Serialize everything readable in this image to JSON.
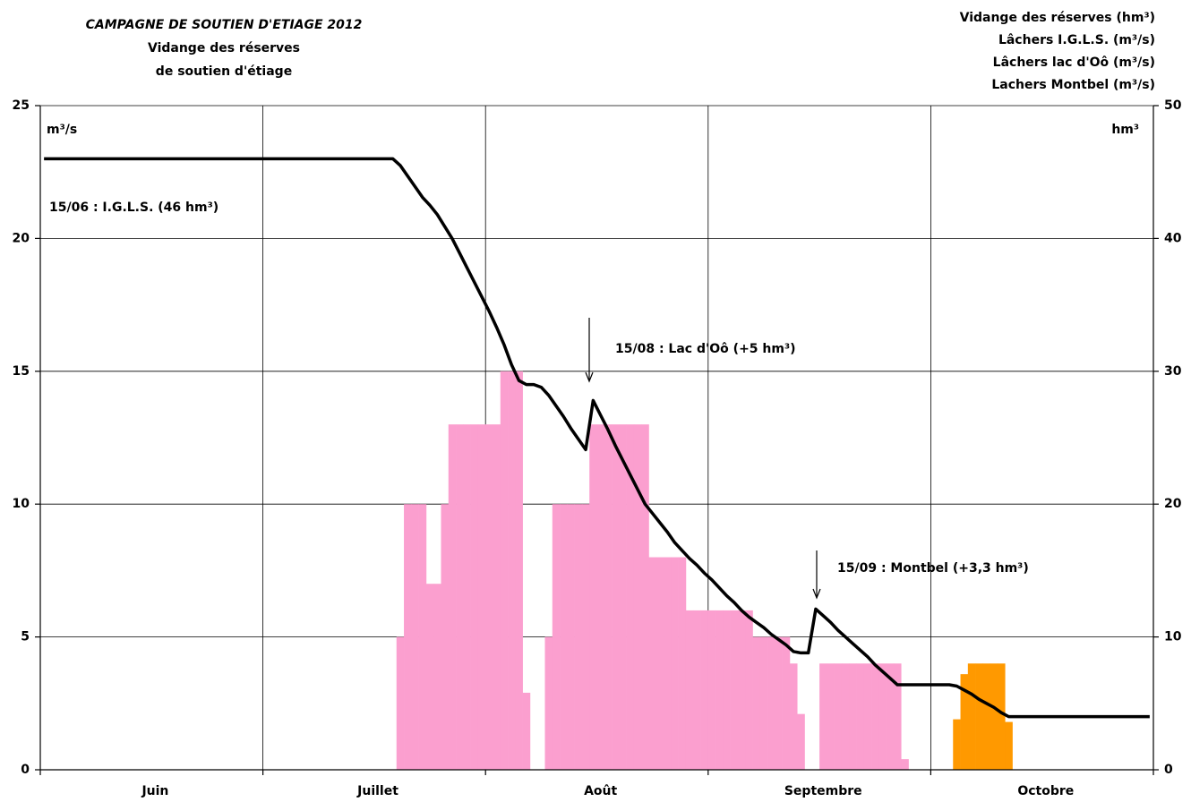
{
  "chart_data": {
    "type": "bar",
    "title": "CAMPAGNE DE SOUTIEN D'ETIAGE 2012",
    "subtitle": [
      "Vidange des réserves",
      "de soutien d'étiage"
    ],
    "ylabel": "m³/s",
    "y2label": "hm³",
    "ylim": [
      0,
      25
    ],
    "yticks": [
      0,
      5,
      10,
      15,
      20,
      25
    ],
    "y2lim": [
      0,
      50
    ],
    "y2ticks": [
      0,
      10,
      20,
      30,
      40,
      50
    ],
    "grid": true,
    "legend": "upper right",
    "stacked": true,
    "categories": [
      null,
      null,
      null,
      null,
      null,
      null,
      null,
      null,
      null,
      null,
      null,
      null,
      null,
      null,
      null,
      "Juin",
      null,
      null,
      null,
      null,
      null,
      null,
      null,
      null,
      null,
      null,
      null,
      null,
      null,
      null,
      null,
      null,
      null,
      null,
      null,
      null,
      null,
      null,
      null,
      null,
      null,
      null,
      null,
      null,
      null,
      "Juillet",
      null,
      null,
      null,
      null,
      null,
      null,
      null,
      null,
      null,
      null,
      null,
      null,
      null,
      null,
      null,
      null,
      null,
      null,
      null,
      null,
      null,
      null,
      null,
      null,
      null,
      null,
      null,
      null,
      null,
      "Août",
      null,
      null,
      null,
      null,
      null,
      null,
      null,
      null,
      null,
      null,
      null,
      null,
      null,
      null,
      null,
      null,
      null,
      null,
      null,
      null,
      null,
      null,
      null,
      null,
      null,
      null,
      null,
      null,
      null,
      "Septembre",
      null,
      null,
      null,
      null,
      null,
      null,
      null,
      null,
      null,
      null,
      null,
      null,
      null,
      null,
      null,
      null,
      null,
      null,
      null,
      null,
      null,
      null,
      null,
      null,
      null,
      null,
      null,
      null,
      null,
      "Octobre",
      null,
      null,
      null,
      null,
      null,
      null,
      null,
      null,
      null,
      null,
      null,
      null,
      null,
      null
    ],
    "series": [
      {
        "name": "Vidange des réserves (hm³)",
        "type": "line",
        "axis": "y2",
        "color": "#000000",
        "values": [
          46,
          46,
          46,
          46,
          46,
          46,
          46,
          46,
          46,
          46,
          46,
          46,
          46,
          46,
          46,
          46,
          46,
          46,
          46,
          46,
          46,
          46,
          46,
          46,
          46,
          46,
          46,
          46,
          46,
          46,
          46,
          46,
          46,
          46,
          46,
          46,
          46,
          46,
          46,
          46,
          46,
          46,
          46,
          46,
          46,
          46,
          46,
          46,
          45.5,
          44.7,
          43.9,
          43.1,
          42.5,
          41.8,
          40.9,
          40,
          38.9,
          37.8,
          36.7,
          35.6,
          34.5,
          33.3,
          32,
          30.5,
          29.3,
          29,
          29,
          28.8,
          28.2,
          27.4,
          26.6,
          25.7,
          24.9,
          24.1,
          27.8,
          26.7,
          25.6,
          24.4,
          23.3,
          22.2,
          21.1,
          20,
          19.3,
          18.6,
          17.9,
          17.1,
          16.5,
          15.9,
          15.4,
          14.8,
          14.3,
          13.7,
          13.1,
          12.6,
          12,
          11.5,
          11.1,
          10.7,
          10.2,
          9.8,
          9.4,
          8.9,
          8.8,
          8.8,
          12.1,
          11.6,
          11.1,
          10.5,
          10,
          9.5,
          9,
          8.5,
          7.9,
          7.4,
          6.9,
          6.4,
          6.4,
          6.4,
          6.4,
          6.4,
          6.4,
          6.4,
          6.4,
          6.3,
          6,
          5.7,
          5.3,
          5,
          4.7,
          4.3,
          4,
          4,
          4,
          4,
          4,
          4,
          4,
          4,
          4,
          4,
          4,
          4,
          4,
          4,
          4,
          4,
          4,
          4,
          4,
          4
        ]
      },
      {
        "name": "Lâchers I.G.L.S. (m³/s)",
        "type": "bar",
        "color": "#fb9fcf",
        "values": [
          0,
          0,
          0,
          0,
          0,
          0,
          0,
          0,
          0,
          0,
          0,
          0,
          0,
          0,
          0,
          0,
          0,
          0,
          0,
          0,
          0,
          0,
          0,
          0,
          0,
          0,
          0,
          0,
          0,
          0,
          0,
          0,
          0,
          0,
          0,
          0,
          0,
          0,
          0,
          0,
          0,
          0,
          0,
          0,
          0,
          0,
          0,
          0,
          5,
          10,
          10,
          10,
          7,
          7,
          10,
          13,
          13,
          13,
          13,
          13,
          13,
          13,
          15,
          15,
          15,
          2.9,
          0,
          0,
          5,
          10,
          10,
          10,
          10,
          10,
          13,
          13,
          13,
          13,
          13,
          13,
          13,
          13,
          8,
          8,
          8,
          8,
          8,
          6,
          6,
          6,
          6,
          6,
          6,
          6,
          6,
          6,
          5,
          5,
          5,
          5,
          5,
          4,
          2.1,
          0,
          0,
          4,
          4,
          4,
          4,
          4,
          4,
          4,
          4,
          4,
          4,
          4,
          0.4,
          0,
          0,
          0,
          0,
          0,
          0,
          0,
          0,
          0,
          0,
          0,
          0,
          0,
          0,
          0,
          0,
          0,
          0,
          0,
          0,
          0,
          0,
          0,
          0,
          0,
          0,
          0,
          0,
          0,
          0,
          0,
          0,
          0
        ]
      },
      {
        "name": "Lâchers lac d'Oô (m³/s)",
        "type": "bar",
        "color": "#e3126e",
        "values": [
          0,
          0,
          0,
          0,
          0,
          0,
          0,
          0,
          0,
          0,
          0,
          0,
          0,
          0,
          0,
          0,
          0,
          0,
          0,
          0,
          0,
          0,
          0,
          0,
          0,
          0,
          0,
          0,
          0,
          0,
          0,
          0,
          0,
          0,
          0,
          0,
          0,
          0,
          0,
          0,
          0,
          0,
          0,
          0,
          0,
          0,
          0,
          0,
          0,
          0,
          0,
          0,
          0,
          0,
          0,
          0,
          0,
          0,
          0,
          0,
          0,
          0,
          0,
          0,
          0,
          0,
          0,
          0,
          0,
          0,
          0,
          0,
          0,
          0,
          0,
          0,
          0,
          0,
          0,
          0,
          0,
          0,
          0,
          0,
          0,
          0,
          0,
          0,
          0,
          0,
          0,
          0,
          0,
          0,
          0,
          0,
          0,
          0,
          0,
          0,
          0,
          0,
          0,
          0,
          0,
          0,
          0,
          0,
          0,
          0,
          0,
          0,
          0,
          0,
          0,
          0,
          0,
          0,
          0,
          0,
          0,
          0,
          0,
          0,
          0,
          0,
          0,
          0,
          0,
          0,
          0,
          0,
          0,
          0,
          0,
          0,
          0,
          0,
          0,
          0,
          0,
          0,
          0,
          0,
          0,
          0,
          0,
          0,
          0,
          0
        ]
      },
      {
        "name": "Lachers Montbel (m³/s)",
        "type": "bar",
        "color": "#ff9900",
        "values": [
          0,
          0,
          0,
          0,
          0,
          0,
          0,
          0,
          0,
          0,
          0,
          0,
          0,
          0,
          0,
          0,
          0,
          0,
          0,
          0,
          0,
          0,
          0,
          0,
          0,
          0,
          0,
          0,
          0,
          0,
          0,
          0,
          0,
          0,
          0,
          0,
          0,
          0,
          0,
          0,
          0,
          0,
          0,
          0,
          0,
          0,
          0,
          0,
          0,
          0,
          0,
          0,
          0,
          0,
          0,
          0,
          0,
          0,
          0,
          0,
          0,
          0,
          0,
          0,
          0,
          0,
          0,
          0,
          0,
          0,
          0,
          0,
          0,
          0,
          0,
          0,
          0,
          0,
          0,
          0,
          0,
          0,
          0,
          0,
          0,
          0,
          0,
          0,
          0,
          0,
          0,
          0,
          0,
          0,
          0,
          0,
          0,
          0,
          0,
          0,
          0,
          0,
          0,
          0,
          0,
          0,
          0,
          0,
          0,
          0,
          0,
          0,
          0,
          0,
          0,
          0,
          0,
          0,
          0,
          0,
          0,
          0,
          0,
          1.9,
          3.6,
          4,
          4,
          4,
          4,
          4,
          1.8,
          0,
          0,
          0,
          0,
          0,
          0,
          0,
          0,
          0,
          0,
          0,
          0,
          0,
          0,
          0,
          0,
          0,
          0,
          0
        ]
      }
    ],
    "annotations": [
      {
        "text": "15/06 : I.G.L.S. (46 hm³)",
        "color": "#fb9fcf"
      },
      {
        "text": "15/08 : Lac d'Oô (+5 hm³)",
        "color": "#e3126e"
      },
      {
        "text": "15/09 : Montbel (+3,3 hm³)",
        "color": "#ff9900"
      }
    ]
  }
}
